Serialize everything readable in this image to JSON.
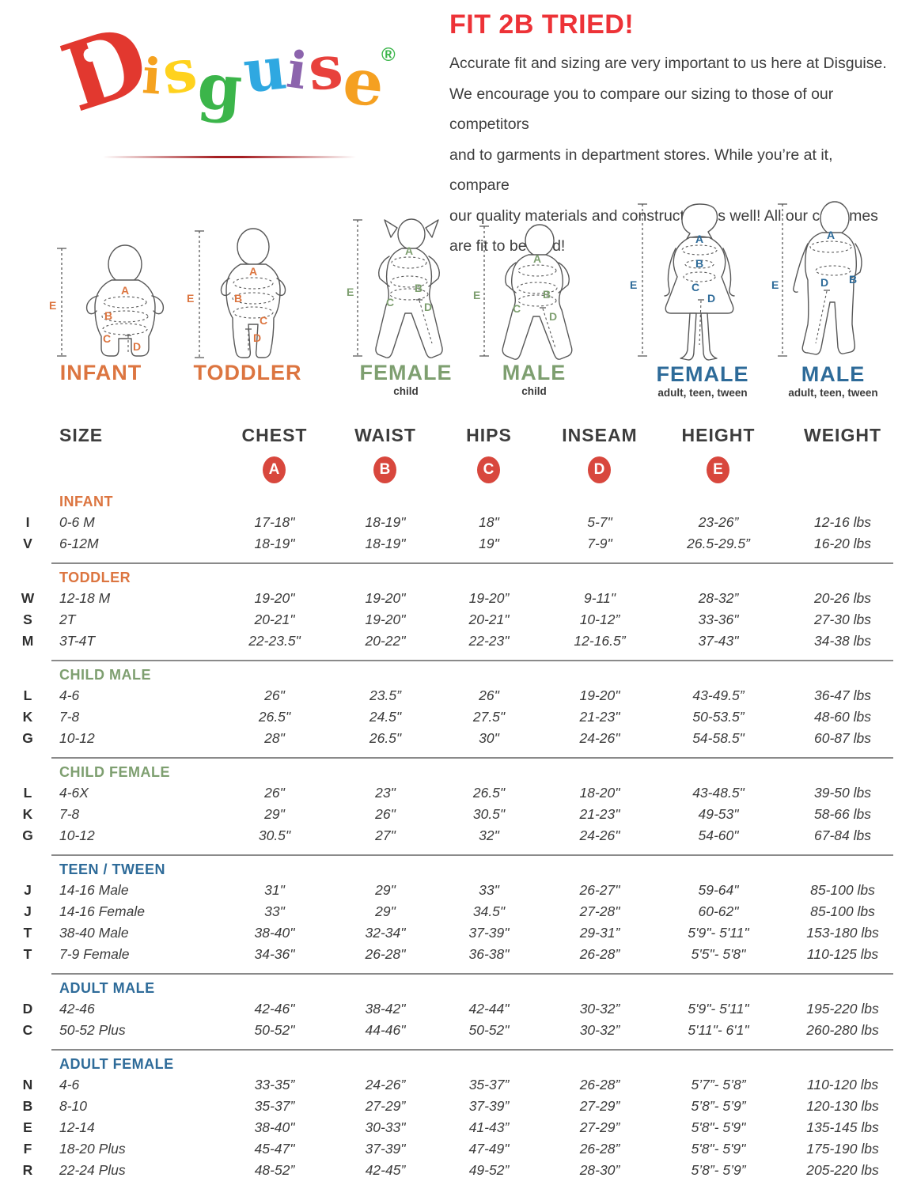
{
  "logo": {
    "letters": [
      {
        "ch": "D",
        "color": "#e2382f"
      },
      {
        "ch": "i",
        "color": "#f5a21f"
      },
      {
        "ch": "s",
        "color": "#ffd21e"
      },
      {
        "ch": "g",
        "color": "#3bb54a"
      },
      {
        "ch": "u",
        "color": "#2fa8e1"
      },
      {
        "ch": "i",
        "color": "#8c64ad"
      },
      {
        "ch": "s",
        "color": "#e8413c"
      },
      {
        "ch": "e",
        "color": "#f5a021"
      }
    ],
    "registered_mark": "®",
    "registered_mark_color": "#3bb54a"
  },
  "header": {
    "title": "FIT 2B TRIED!",
    "title_color": "#ed3237",
    "body_lines": [
      "Accurate fit and sizing are very important to us here at Disguise.",
      "We encourage you to compare our sizing to those of our competitors",
      "and to garments in department stores. While you’re at it, compare",
      "our quality materials and construction as well! All our costumes",
      "are fit to be tried!"
    ]
  },
  "figures": {
    "measure_letters": [
      "A",
      "B",
      "C",
      "D",
      "E"
    ],
    "group_colors": {
      "infant_toddler": "#dc7540",
      "child": "#7e9f70",
      "adult": "#2e6b99"
    },
    "items": [
      {
        "label": "INFANT",
        "sublabel": "",
        "color": "#dc7540"
      },
      {
        "label": "TODDLER",
        "sublabel": "",
        "color": "#dc7540"
      },
      {
        "label": "FEMALE",
        "sublabel": "child",
        "color": "#7e9f70"
      },
      {
        "label": "MALE",
        "sublabel": "child",
        "color": "#7e9f70"
      },
      {
        "label": "FEMALE",
        "sublabel": "adult, teen, tween",
        "color": "#2e6b99"
      },
      {
        "label": "MALE",
        "sublabel": "adult, teen, tween",
        "color": "#2e6b99"
      }
    ]
  },
  "table": {
    "columns": [
      "SIZE",
      "CHEST",
      "WAIST",
      "HIPS",
      "INSEAM",
      "HEIGHT",
      "WEIGHT"
    ],
    "badges": [
      "A",
      "B",
      "C",
      "D",
      "E"
    ],
    "badge_color": "#d8473d",
    "sections": [
      {
        "heading": "INFANT",
        "color": "#dc7540",
        "rows": [
          {
            "code": "I",
            "size": "0-6 M",
            "chest": "17-18\"",
            "waist": "18-19\"",
            "hips": "18\"",
            "inseam": "5-7\"",
            "height": "23-26”",
            "weight": "12-16 lbs"
          },
          {
            "code": "V",
            "size": "6-12M",
            "chest": "18-19\"",
            "waist": "18-19\"",
            "hips": "19\"",
            "inseam": "7-9\"",
            "height": "26.5-29.5”",
            "weight": "16-20 lbs"
          }
        ]
      },
      {
        "heading": "TODDLER",
        "color": "#dc7540",
        "rows": [
          {
            "code": "W",
            "size": "12-18 M",
            "chest": "19-20\"",
            "waist": "19-20\"",
            "hips": "19-20”",
            "inseam": "9-11\"",
            "height": "28-32”",
            "weight": "20-26 lbs"
          },
          {
            "code": "S",
            "size": "2T",
            "chest": "20-21\"",
            "waist": "19-20\"",
            "hips": "20-21\"",
            "inseam": "10-12”",
            "height": "33-36\"",
            "weight": "27-30 lbs"
          },
          {
            "code": "M",
            "size": "3T-4T",
            "chest": "22-23.5\"",
            "waist": "20-22\"",
            "hips": "22-23\"",
            "inseam": "12-16.5”",
            "height": "37-43\"",
            "weight": "34-38 lbs"
          }
        ]
      },
      {
        "heading": "CHILD MALE",
        "color": "#7e9f70",
        "rows": [
          {
            "code": "L",
            "size": "4-6",
            "chest": "26\"",
            "waist": "23.5”",
            "hips": "26\"",
            "inseam": "19-20\"",
            "height": "43-49.5”",
            "weight": "36-47 lbs"
          },
          {
            "code": "K",
            "size": "7-8",
            "chest": "26.5\"",
            "waist": "24.5\"",
            "hips": "27.5\"",
            "inseam": "21-23\"",
            "height": "50-53.5”",
            "weight": "48-60 lbs"
          },
          {
            "code": "G",
            "size": "10-12",
            "chest": "28\"",
            "waist": "26.5\"",
            "hips": "30\"",
            "inseam": "24-26\"",
            "height": "54-58.5\"",
            "weight": "60-87 lbs"
          }
        ]
      },
      {
        "heading": "CHILD FEMALE",
        "color": "#7e9f70",
        "rows": [
          {
            "code": "L",
            "size": "4-6X",
            "chest": "26\"",
            "waist": "23\"",
            "hips": "26.5\"",
            "inseam": "18-20\"",
            "height": "43-48.5\"",
            "weight": "39-50 lbs"
          },
          {
            "code": "K",
            "size": "7-8",
            "chest": "29\"",
            "waist": "26\"",
            "hips": "30.5\"",
            "inseam": "21-23\"",
            "height": "49-53\"",
            "weight": "58-66 lbs"
          },
          {
            "code": "G",
            "size": "10-12",
            "chest": "30.5\"",
            "waist": "27\"",
            "hips": "32\"",
            "inseam": "24-26\"",
            "height": "54-60\"",
            "weight": "67-84 lbs"
          }
        ]
      },
      {
        "heading": "TEEN / TWEEN",
        "color": "#2e6b99",
        "rows": [
          {
            "code": "J",
            "size": "14-16 Male",
            "chest": "31\"",
            "waist": "29\"",
            "hips": "33\"",
            "inseam": "26-27\"",
            "height": "59-64\"",
            "weight": "85-100 lbs"
          },
          {
            "code": "J",
            "size": "14-16 Female",
            "chest": "33\"",
            "waist": "29\"",
            "hips": "34.5\"",
            "inseam": "27-28\"",
            "height": "60-62\"",
            "weight": "85-100 lbs"
          },
          {
            "code": "T",
            "size": "38-40 Male",
            "chest": "38-40\"",
            "waist": "32-34\"",
            "hips": "37-39\"",
            "inseam": "29-31”",
            "height": "5'9\"- 5'11\"",
            "weight": "153-180 lbs"
          },
          {
            "code": "T",
            "size": "7-9 Female",
            "chest": "34-36\"",
            "waist": "26-28\"",
            "hips": "36-38\"",
            "inseam": "26-28”",
            "height": "5'5\"- 5'8\"",
            "weight": "110-125 lbs"
          }
        ]
      },
      {
        "heading": "ADULT MALE",
        "color": "#2e6b99",
        "rows": [
          {
            "code": "D",
            "size": "42-46",
            "chest": "42-46\"",
            "waist": "38-42\"",
            "hips": "42-44\"",
            "inseam": "30-32”",
            "height": "5'9\"- 5'11\"",
            "weight": "195-220 lbs"
          },
          {
            "code": "C",
            "size": "50-52 Plus",
            "chest": "50-52\"",
            "waist": "44-46\"",
            "hips": "50-52\"",
            "inseam": "30-32”",
            "height": "5'11\"- 6'1\"",
            "weight": "260-280 lbs"
          }
        ]
      },
      {
        "heading": "ADULT FEMALE",
        "color": "#2e6b99",
        "rows": [
          {
            "code": "N",
            "size": "4-6",
            "chest": "33-35”",
            "waist": "24-26”",
            "hips": "35-37”",
            "inseam": "26-28”",
            "height": "5’7”- 5’8”",
            "weight": "110-120 lbs"
          },
          {
            "code": "B",
            "size": "8-10",
            "chest": "35-37”",
            "waist": "27-29”",
            "hips": "37-39”",
            "inseam": "27-29”",
            "height": "5’8”- 5’9”",
            "weight": "120-130 lbs"
          },
          {
            "code": "E",
            "size": "12-14",
            "chest": "38-40\"",
            "waist": "30-33\"",
            "hips": "41-43”",
            "inseam": "27-29”",
            "height": "5'8\"- 5'9\"",
            "weight": "135-145 lbs"
          },
          {
            "code": "F",
            "size": "18-20 Plus",
            "chest": "45-47\"",
            "waist": "37-39\"",
            "hips": "47-49\"",
            "inseam": "26-28”",
            "height": "5'8\"- 5'9\"",
            "weight": "175-190 lbs"
          },
          {
            "code": "R",
            "size": "22-24 Plus",
            "chest": "48-52”",
            "waist": "42-45”",
            "hips": "49-52”",
            "inseam": "28-30”",
            "height": "5’8”- 5’9”",
            "weight": "205-220 lbs"
          }
        ]
      }
    ]
  }
}
